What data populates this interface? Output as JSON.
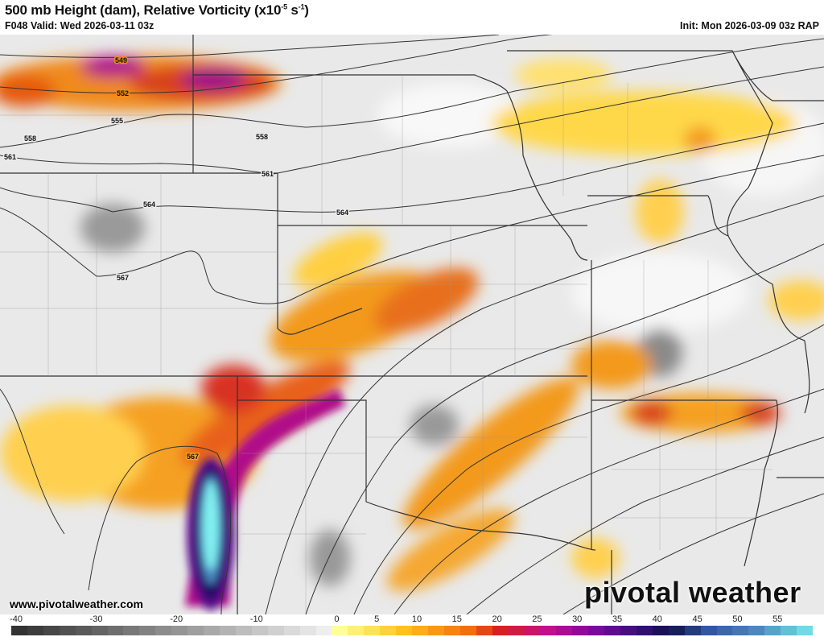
{
  "header": {
    "title_main": "500 mb Height (dam), Relative Vorticity (x10",
    "title_exp1": "-5",
    "title_mid": " s",
    "title_exp2": "-1",
    "title_end": ")",
    "valid": "F048 Valid: Wed 2026-03-11 03z",
    "init": "Init: Mon 2026-03-09 03z RAP"
  },
  "map": {
    "contour_labels": [
      "549",
      "552",
      "555",
      "558",
      "561",
      "564",
      "567"
    ],
    "vorticity_colors": {
      "yellow": "#ffd84a",
      "orange": "#f39a1a",
      "red": "#d8401a",
      "magenta": "#b0108a",
      "purple": "#5a0a8a",
      "navy": "#1a1060",
      "cyan": "#80f0f0"
    }
  },
  "footer": {
    "url": "www.pivotalweather.com",
    "logo": "pivotal weather"
  },
  "colorbar": {
    "ticks": [
      "-40",
      "-30",
      "-20",
      "-10",
      "0",
      "5",
      "10",
      "15",
      "20",
      "25",
      "30",
      "35",
      "40",
      "45",
      "50",
      "55"
    ],
    "range": [
      -40,
      60
    ],
    "step": 2,
    "stops": [
      [
        -40,
        "#333333"
      ],
      [
        -2,
        "#eeeeee"
      ],
      [
        0,
        "#ffff99"
      ],
      [
        8,
        "#ffc21a"
      ],
      [
        16,
        "#f07010"
      ],
      [
        20,
        "#d82020"
      ],
      [
        26,
        "#c0108f"
      ],
      [
        32,
        "#7a0a9a"
      ],
      [
        38,
        "#301070"
      ],
      [
        41,
        "#101050"
      ],
      [
        46,
        "#3058a0"
      ],
      [
        52,
        "#4a88c0"
      ],
      [
        60,
        "#80f4f4"
      ]
    ]
  }
}
